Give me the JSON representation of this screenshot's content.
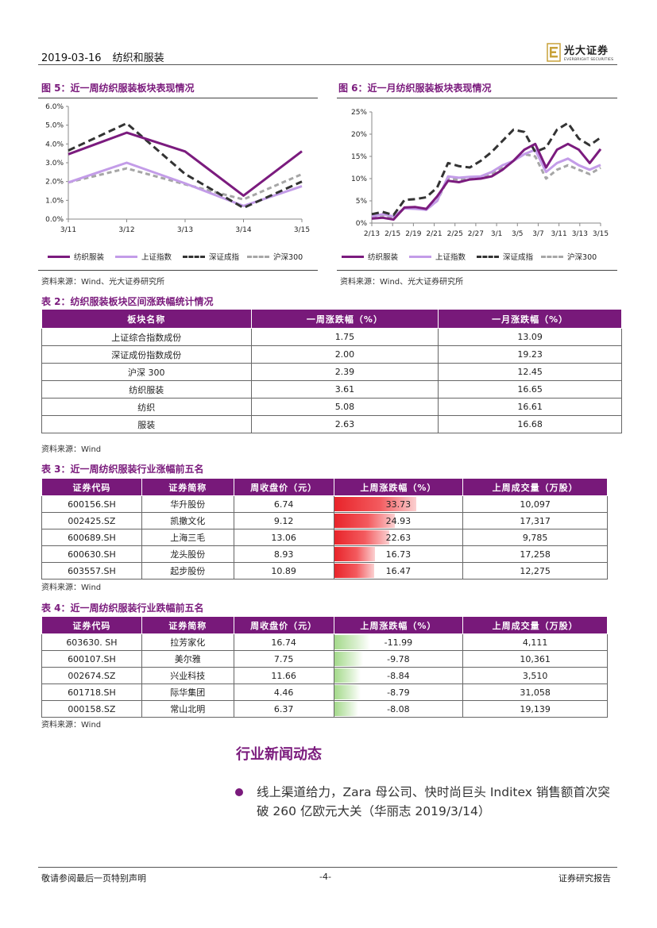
{
  "header": {
    "date": "2019-03-16",
    "sector": "纺织和服装",
    "logo_cn": "光大证券",
    "logo_en": "EVERBRIGHT SECURITIES"
  },
  "figure5": {
    "title": "图 5：近一周纺织服装板块表现情况",
    "source": "资料来源：Wind、光大证券研究所"
  },
  "figure6": {
    "title": "图 6：近一月纺织服装板块表现情况",
    "source": "资料来源：Wind、光大证券研究所"
  },
  "legend": [
    "纺织服装",
    "上证指数",
    "深证成指",
    "沪深300"
  ],
  "colors": {
    "brand": "#78197a",
    "textile": "#7b1b7e",
    "shanghai": "#c39ce8",
    "shenzhen": "#333333",
    "hs300": "#a6a6a6"
  },
  "chart_data": [
    {
      "type": "line",
      "xlabels": [
        "3/11",
        "3/12",
        "3/13",
        "3/14",
        "3/15"
      ],
      "yticks": [
        "0.0%",
        "1.0%",
        "2.0%",
        "3.0%",
        "4.0%",
        "5.0%",
        "6.0%"
      ],
      "ylim": [
        0,
        6
      ],
      "unit": "%",
      "series": [
        {
          "name": "纺织服装",
          "values": [
            3.45,
            4.6,
            3.6,
            1.25,
            3.61
          ]
        },
        {
          "name": "上证指数",
          "values": [
            1.95,
            3.0,
            1.9,
            0.7,
            1.75
          ]
        },
        {
          "name": "深证成指",
          "values": [
            3.65,
            5.1,
            2.4,
            0.6,
            2.0
          ]
        },
        {
          "name": "沪深300",
          "values": [
            1.95,
            2.7,
            1.85,
            1.05,
            2.39
          ]
        }
      ]
    },
    {
      "type": "line",
      "xlabels": [
        "2/13",
        "2/15",
        "2/19",
        "2/21",
        "2/25",
        "2/27",
        "3/1",
        "3/5",
        "3/7",
        "3/11",
        "3/13",
        "3/15"
      ],
      "yticks": [
        "0%",
        "5%",
        "10%",
        "15%",
        "20%",
        "25%"
      ],
      "ylim": [
        0,
        25
      ],
      "unit": "%",
      "series": [
        {
          "name": "纺织服装",
          "values": [
            1,
            1.2,
            0.8,
            3.5,
            3.6,
            3.2,
            6,
            9.5,
            9.2,
            9.8,
            10,
            10.5,
            12,
            14,
            16.5,
            17.8,
            12.5,
            16.5,
            17.8,
            16.5,
            13.5,
            16.65
          ]
        },
        {
          "name": "上证指数",
          "values": [
            1.5,
            2,
            1.5,
            3.3,
            3.2,
            3,
            5,
            10.5,
            10.2,
            10.4,
            10.5,
            11.5,
            13,
            14,
            15.5,
            16.5,
            11.5,
            13.5,
            14.5,
            13,
            12,
            13.09
          ]
        },
        {
          "name": "深证成指",
          "values": [
            2,
            2.5,
            1.8,
            5.2,
            5.4,
            5.8,
            8,
            13.5,
            12.8,
            12.5,
            14,
            16,
            18.5,
            21,
            20.5,
            16,
            17,
            21,
            22.5,
            19,
            17.5,
            19.23
          ]
        },
        {
          "name": "沪深300",
          "values": [
            1.5,
            1.8,
            1,
            3.4,
            3.3,
            3,
            5,
            10,
            9.8,
            9.9,
            10.1,
            11,
            12.5,
            14,
            15.5,
            15,
            10,
            12,
            13,
            12,
            11,
            12.45
          ]
        }
      ]
    }
  ],
  "table2": {
    "title": "表 2：纺织服装板块区间涨跌幅统计情况",
    "headers": [
      "板块名称",
      "一周涨跌幅（%）",
      "一月涨跌幅（%）"
    ],
    "rows": [
      [
        "上证综合指数成份",
        "1.75",
        "13.09"
      ],
      [
        "深证成份指数成份",
        "2.00",
        "19.23"
      ],
      [
        "沪深 300",
        "2.39",
        "12.45"
      ],
      [
        "纺织服装",
        "3.61",
        "16.65"
      ],
      [
        "纺织",
        "5.08",
        "16.61"
      ],
      [
        "服装",
        "2.63",
        "16.68"
      ]
    ],
    "source": "资料来源：Wind"
  },
  "table3": {
    "title": "表 3：近一周纺织服装行业涨幅前五名",
    "headers": [
      "证券代码",
      "证券简称",
      "周收盘价（元）",
      "上周涨跌幅（%）",
      "上周成交量（万股）"
    ],
    "rows": [
      {
        "code": "600156.SH",
        "name": "华升股份",
        "close": "6.74",
        "change": "33.73",
        "change_num": 33.73,
        "volume": "10,097"
      },
      {
        "code": "002425.SZ",
        "name": "凯撒文化",
        "close": "9.12",
        "change": "24.93",
        "change_num": 24.93,
        "volume": "17,317"
      },
      {
        "code": "600689.SH",
        "name": "上海三毛",
        "close": "13.06",
        "change": "22.63",
        "change_num": 22.63,
        "volume": "9,785"
      },
      {
        "code": "600630.SH",
        "name": "龙头股份",
        "close": "8.93",
        "change": "16.73",
        "change_num": 16.73,
        "volume": "17,258"
      },
      {
        "code": "603557.SH",
        "name": "起步股份",
        "close": "10.89",
        "change": "16.47",
        "change_num": 16.47,
        "volume": "12,275"
      }
    ],
    "source": "资料来源：Wind"
  },
  "table4": {
    "title": "表 4：近一周纺织服装行业跌幅前五名",
    "headers": [
      "证券代码",
      "证券简称",
      "周收盘价（元）",
      "上周涨跌幅（%）",
      "上周成交量（万股）"
    ],
    "rows": [
      {
        "code": "603630. SH",
        "name": "拉芳家化",
        "close": "16.74",
        "change": "-11.99",
        "change_num": -11.99,
        "volume": "4,111"
      },
      {
        "code": "600107.SH",
        "name": "美尔雅",
        "close": "7.75",
        "change": "-9.78",
        "change_num": -9.78,
        "volume": "10,361"
      },
      {
        "code": "002674.SZ",
        "name": "兴业科技",
        "close": "11.66",
        "change": "-8.84",
        "change_num": -8.84,
        "volume": "3,510"
      },
      {
        "code": "601718.SH",
        "name": "际华集团",
        "close": "4.46",
        "change": "-8.79",
        "change_num": -8.79,
        "volume": "31,058"
      },
      {
        "code": "000158.SZ",
        "name": "常山北明",
        "close": "6.37",
        "change": "-8.08",
        "change_num": -8.08,
        "volume": "19,139"
      }
    ],
    "source": "资料来源：Wind"
  },
  "news": {
    "section_title": "行业新闻动态",
    "items": [
      "线上渠道给力，Zara 母公司、快时尚巨头 Inditex 销售额首次突破 260 亿欧元大关（华丽志 2019/3/14）"
    ]
  },
  "footer": {
    "left": "敬请参阅最后一页特别声明",
    "center": "-4-",
    "right": "证券研究报告"
  }
}
